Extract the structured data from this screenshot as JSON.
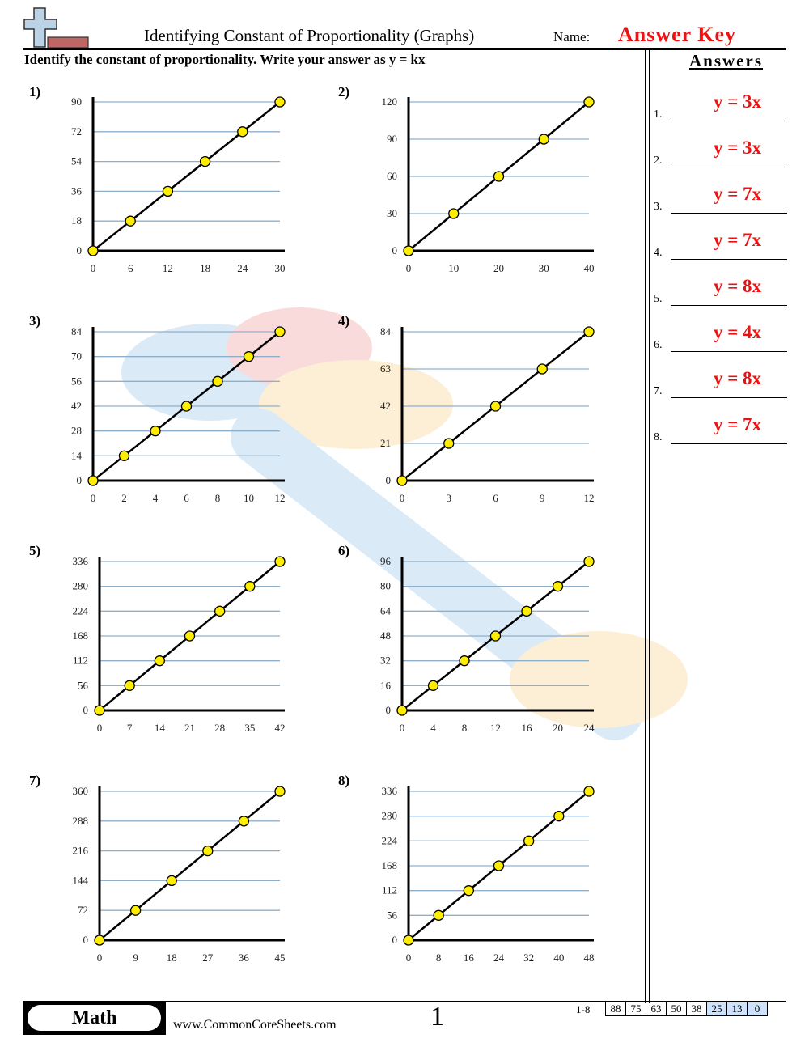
{
  "header": {
    "title": "Identifying Constant of Proportionality (Graphs)",
    "name_label": "Name:",
    "name_value": "Answer Key",
    "instructions": "Identify the constant of proportionality. Write your answer as y = kx",
    "logo_icon": "plus-minus-logo-icon"
  },
  "answers": {
    "title": "Answers",
    "items": [
      {
        "num": "1.",
        "value": "y = 3x"
      },
      {
        "num": "2.",
        "value": "y = 3x"
      },
      {
        "num": "3.",
        "value": "y = 7x"
      },
      {
        "num": "4.",
        "value": "y = 7x"
      },
      {
        "num": "5.",
        "value": "y = 8x"
      },
      {
        "num": "6.",
        "value": "y = 4x"
      },
      {
        "num": "7.",
        "value": "y = 8x"
      },
      {
        "num": "8.",
        "value": "y = 7x"
      }
    ]
  },
  "questions": [
    {
      "label": "1)"
    },
    {
      "label": "2)"
    },
    {
      "label": "3)"
    },
    {
      "label": "4)"
    },
    {
      "label": "5)"
    },
    {
      "label": "6)"
    },
    {
      "label": "7)"
    },
    {
      "label": "8)"
    }
  ],
  "footer": {
    "subject": "Math",
    "website": "www.CommonCoreSheets.com",
    "page": "1",
    "score_label": "1-8",
    "scores": [
      "88",
      "75",
      "63",
      "50",
      "38",
      "25",
      "13",
      "0"
    ],
    "highlighted_scores": [
      "25",
      "13",
      "0"
    ]
  },
  "colors": {
    "answer_red": "#ee1111",
    "gridline_blue": "#8fb0cc",
    "point_yellow": "#ffee00",
    "score_highlight": "#cfe2fb"
  },
  "chart_data": [
    {
      "type": "line",
      "title": "1)",
      "x": [
        0,
        6,
        12,
        18,
        24,
        30
      ],
      "y": [
        0,
        18,
        36,
        54,
        72,
        90
      ],
      "xticks": [
        0,
        6,
        12,
        18,
        24,
        30
      ],
      "yticks": [
        0,
        18,
        36,
        54,
        72,
        90
      ],
      "xlim": [
        0,
        30
      ],
      "ylim": [
        0,
        90
      ],
      "grid": "horizontal",
      "k": 3
    },
    {
      "type": "line",
      "title": "2)",
      "x": [
        0,
        10,
        20,
        30,
        40
      ],
      "y": [
        0,
        30,
        60,
        90,
        120
      ],
      "xticks": [
        0,
        10,
        20,
        30,
        40
      ],
      "yticks": [
        0,
        30,
        60,
        90,
        120
      ],
      "xlim": [
        0,
        40
      ],
      "ylim": [
        0,
        120
      ],
      "grid": "horizontal",
      "k": 3
    },
    {
      "type": "line",
      "title": "3)",
      "x": [
        0,
        2,
        4,
        6,
        8,
        10,
        12
      ],
      "y": [
        0,
        14,
        28,
        42,
        56,
        70,
        84
      ],
      "xticks": [
        0,
        2,
        4,
        6,
        8,
        10,
        12
      ],
      "yticks": [
        0,
        14,
        28,
        42,
        56,
        70,
        84
      ],
      "xlim": [
        0,
        12
      ],
      "ylim": [
        0,
        84
      ],
      "grid": "horizontal",
      "k": 7
    },
    {
      "type": "line",
      "title": "4)",
      "x": [
        0,
        3,
        6,
        9,
        12
      ],
      "y": [
        0,
        21,
        42,
        63,
        84
      ],
      "xticks": [
        0,
        3,
        6,
        9,
        12
      ],
      "yticks": [
        0,
        21,
        42,
        63,
        84
      ],
      "xlim": [
        0,
        12
      ],
      "ylim": [
        0,
        84
      ],
      "grid": "horizontal",
      "k": 7
    },
    {
      "type": "line",
      "title": "5)",
      "x": [
        0,
        7,
        14,
        21,
        28,
        35,
        42
      ],
      "y": [
        0,
        56,
        112,
        168,
        224,
        280,
        336
      ],
      "xticks": [
        0,
        7,
        14,
        21,
        28,
        35,
        42
      ],
      "yticks": [
        0,
        56,
        112,
        168,
        224,
        280,
        336
      ],
      "xlim": [
        0,
        42
      ],
      "ylim": [
        0,
        336
      ],
      "grid": "horizontal",
      "k": 8
    },
    {
      "type": "line",
      "title": "6)",
      "x": [
        0,
        4,
        8,
        12,
        16,
        20,
        24
      ],
      "y": [
        0,
        16,
        32,
        48,
        64,
        80,
        96
      ],
      "xticks": [
        0,
        4,
        8,
        12,
        16,
        20,
        24
      ],
      "yticks": [
        0,
        16,
        32,
        48,
        64,
        80,
        96
      ],
      "xlim": [
        0,
        24
      ],
      "ylim": [
        0,
        96
      ],
      "grid": "horizontal",
      "k": 4
    },
    {
      "type": "line",
      "title": "7)",
      "x": [
        0,
        9,
        18,
        27,
        36,
        45
      ],
      "y": [
        0,
        72,
        144,
        216,
        288,
        360
      ],
      "xticks": [
        0,
        9,
        18,
        27,
        36,
        45
      ],
      "yticks": [
        0,
        72,
        144,
        216,
        288,
        360
      ],
      "xlim": [
        0,
        45
      ],
      "ylim": [
        0,
        360
      ],
      "grid": "horizontal",
      "k": 8
    },
    {
      "type": "line",
      "title": "8)",
      "x": [
        0,
        8,
        16,
        24,
        32,
        40,
        48
      ],
      "y": [
        0,
        56,
        112,
        168,
        224,
        280,
        336
      ],
      "xticks": [
        0,
        8,
        16,
        24,
        32,
        40,
        48
      ],
      "yticks": [
        0,
        56,
        112,
        168,
        224,
        280,
        336
      ],
      "xlim": [
        0,
        48
      ],
      "ylim": [
        0,
        336
      ],
      "grid": "horizontal",
      "k": 7
    }
  ]
}
